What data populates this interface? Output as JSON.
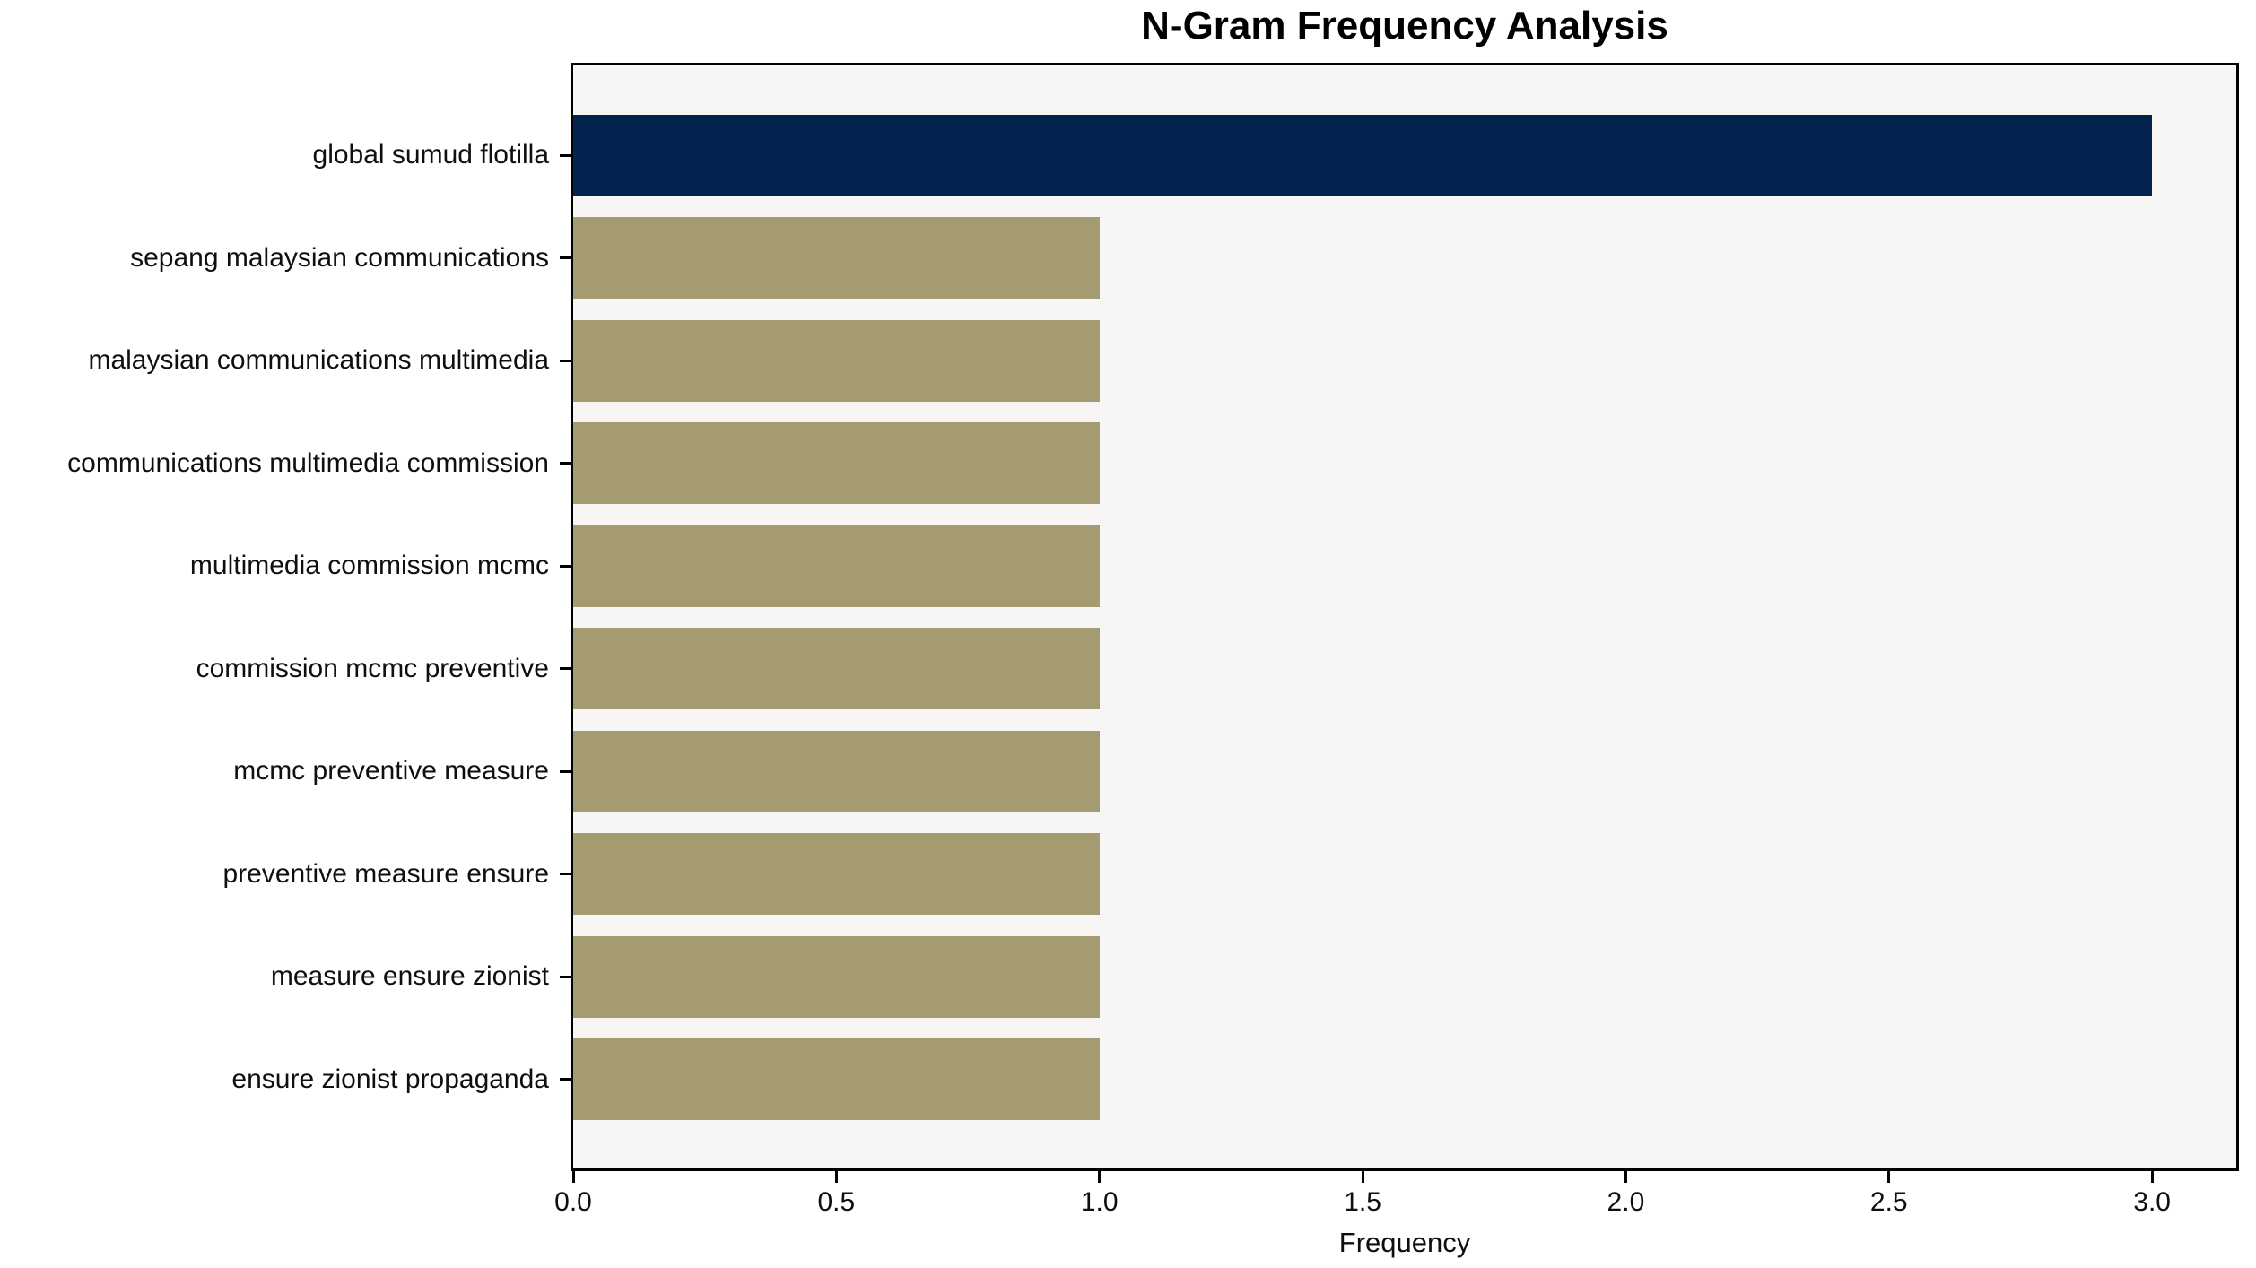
{
  "chart_data": {
    "type": "bar",
    "orientation": "horizontal",
    "title": "N-Gram Frequency Analysis",
    "xlabel": "Frequency",
    "ylabel": "",
    "categories": [
      "global sumud flotilla",
      "sepang malaysian communications",
      "malaysian communications multimedia",
      "communications multimedia commission",
      "multimedia commission mcmc",
      "commission mcmc preventive",
      "mcmc preventive measure",
      "preventive measure ensure",
      "measure ensure zionist",
      "ensure zionist propaganda"
    ],
    "values": [
      3,
      1,
      1,
      1,
      1,
      1,
      1,
      1,
      1,
      1
    ],
    "xlim": [
      0,
      3.16
    ],
    "xticks": [
      0.0,
      0.5,
      1.0,
      1.5,
      2.0,
      2.5,
      3.0
    ],
    "xtick_labels": [
      "0.0",
      "0.5",
      "1.0",
      "1.5",
      "2.0",
      "2.5",
      "3.0"
    ],
    "grid": false,
    "legend": "none",
    "colors": {
      "highlight_bar": "#02234d",
      "default_bar": "#a49c70",
      "plot_background": "#f7f6f5",
      "spine": "#000000",
      "text": "#0f0f0f"
    },
    "highlight_index": 0
  }
}
